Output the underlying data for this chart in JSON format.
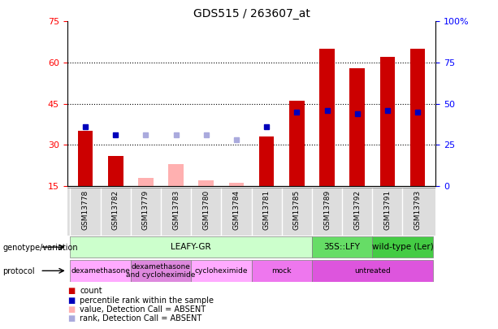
{
  "title": "GDS515 / 263607_at",
  "samples": [
    "GSM13778",
    "GSM13782",
    "GSM13779",
    "GSM13783",
    "GSM13780",
    "GSM13784",
    "GSM13781",
    "GSM13785",
    "GSM13789",
    "GSM13792",
    "GSM13791",
    "GSM13793"
  ],
  "count_values": [
    35,
    26,
    null,
    null,
    null,
    null,
    33,
    46,
    65,
    58,
    62,
    65
  ],
  "count_absent": [
    null,
    null,
    18,
    23,
    17,
    16,
    null,
    null,
    null,
    null,
    null,
    null
  ],
  "rank_values": [
    36,
    31,
    null,
    null,
    null,
    null,
    36,
    45,
    46,
    44,
    46,
    45
  ],
  "rank_absent": [
    null,
    null,
    31,
    31,
    31,
    28,
    null,
    null,
    null,
    null,
    null,
    null
  ],
  "ylim_left": [
    15,
    75
  ],
  "ylim_right": [
    0,
    100
  ],
  "yticks_left": [
    15,
    30,
    45,
    60,
    75
  ],
  "yticks_right": [
    0,
    25,
    50,
    75,
    100
  ],
  "bar_color_red": "#cc0000",
  "bar_color_pink": "#ffb0b0",
  "dot_color_blue": "#0000bb",
  "dot_color_lightblue": "#aaaadd",
  "genotype_groups": [
    {
      "label": "LEAFY-GR",
      "start": 0,
      "end": 8,
      "color": "#ccffcc"
    },
    {
      "label": "35S::LFY",
      "start": 8,
      "end": 10,
      "color": "#66dd66"
    },
    {
      "label": "wild-type (Ler)",
      "start": 10,
      "end": 12,
      "color": "#44cc44"
    }
  ],
  "protocol_groups": [
    {
      "label": "dexamethasone",
      "start": 0,
      "end": 2,
      "color": "#ffaaff"
    },
    {
      "label": "dexamethasone\nand cycloheximide",
      "start": 2,
      "end": 4,
      "color": "#dd88dd"
    },
    {
      "label": "cycloheximide",
      "start": 4,
      "end": 6,
      "color": "#ffaaff"
    },
    {
      "label": "mock",
      "start": 6,
      "end": 8,
      "color": "#ee77ee"
    },
    {
      "label": "untreated",
      "start": 8,
      "end": 12,
      "color": "#dd55dd"
    }
  ],
  "legend_items": [
    {
      "label": "count",
      "color": "#cc0000"
    },
    {
      "label": "percentile rank within the sample",
      "color": "#0000bb"
    },
    {
      "label": "value, Detection Call = ABSENT",
      "color": "#ffb0b0"
    },
    {
      "label": "rank, Detection Call = ABSENT",
      "color": "#aaaadd"
    }
  ]
}
